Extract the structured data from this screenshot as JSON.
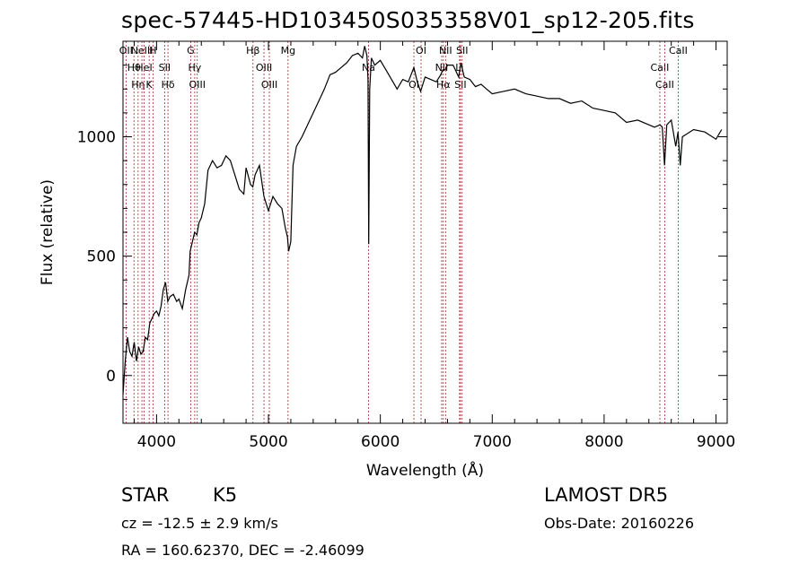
{
  "title": "spec-57445-HD103450S035358V01_sp12-205.fits",
  "footer": {
    "obj_class": "STAR",
    "obj_subclass": "K5",
    "cz": "cz = -12.5 ± 2.9 km/s",
    "radec": "RA = 160.62370, DEC =  -2.46099",
    "survey": "LAMOST DR5",
    "obs_date": "Obs-Date: 20160226"
  },
  "colors": {
    "spectrum": "#000000",
    "lines": "#b22222",
    "axes": "#000000"
  },
  "chart_data": {
    "type": "line",
    "title": "spec-57445-HD103450S035358V01_sp12-205.fits",
    "xlabel": "Wavelength (Å)",
    "ylabel": "Flux (relative)",
    "xlim": [
      3700,
      9100
    ],
    "ylim": [
      -200,
      1400
    ],
    "xticks": [
      4000,
      5000,
      6000,
      7000,
      8000,
      9000
    ],
    "yticks": [
      0,
      500,
      1000
    ],
    "grid": false,
    "series": [
      {
        "x": [
          3700,
          3720,
          3740,
          3760,
          3780,
          3800,
          3820,
          3840,
          3860,
          3880,
          3900,
          3920,
          3940,
          3960,
          3980,
          4000,
          4020,
          4040,
          4060,
          4080,
          4100,
          4120,
          4150,
          4180,
          4200,
          4230,
          4260,
          4290,
          4300,
          4320,
          4340,
          4360,
          4380,
          4400,
          4430,
          4460,
          4500,
          4540,
          4580,
          4620,
          4660,
          4700,
          4740,
          4780,
          4800,
          4840,
          4860,
          4880,
          4920,
          4960,
          5000,
          5040,
          5080,
          5120,
          5150,
          5170,
          5180,
          5200,
          5220,
          5250,
          5300,
          5350,
          5400,
          5450,
          5500,
          5550,
          5600,
          5650,
          5700,
          5750,
          5800,
          5840,
          5860,
          5880,
          5890,
          5896,
          5905,
          5920,
          5950,
          6000,
          6050,
          6100,
          6150,
          6200,
          6250,
          6300,
          6330,
          6360,
          6400,
          6450,
          6500,
          6540,
          6560,
          6580,
          6600,
          6650,
          6700,
          6720,
          6750,
          6800,
          6850,
          6900,
          6950,
          7000,
          7100,
          7200,
          7300,
          7400,
          7500,
          7600,
          7700,
          7800,
          7900,
          8000,
          8100,
          8200,
          8300,
          8400,
          8450,
          8500,
          8520,
          8540,
          8560,
          8600,
          8640,
          8660,
          8680,
          8700,
          8800,
          8900,
          9000,
          9050
        ],
        "y": [
          -80,
          60,
          160,
          100,
          80,
          140,
          60,
          120,
          90,
          100,
          160,
          150,
          220,
          240,
          260,
          270,
          250,
          290,
          360,
          390,
          310,
          330,
          340,
          310,
          320,
          280,
          360,
          420,
          520,
          560,
          600,
          590,
          640,
          660,
          720,
          860,
          900,
          870,
          880,
          920,
          900,
          840,
          780,
          760,
          870,
          800,
          790,
          840,
          880,
          750,
          690,
          750,
          720,
          700,
          620,
          580,
          520,
          560,
          880,
          960,
          1000,
          1050,
          1100,
          1150,
          1200,
          1260,
          1270,
          1290,
          1310,
          1340,
          1350,
          1330,
          1380,
          1340,
          1240,
          550,
          1200,
          1330,
          1300,
          1320,
          1280,
          1240,
          1200,
          1240,
          1230,
          1290,
          1230,
          1190,
          1250,
          1240,
          1230,
          1260,
          1280,
          1280,
          1300,
          1300,
          1250,
          1310,
          1250,
          1240,
          1210,
          1220,
          1200,
          1180,
          1190,
          1200,
          1180,
          1170,
          1160,
          1160,
          1140,
          1150,
          1120,
          1110,
          1100,
          1060,
          1070,
          1050,
          1040,
          1050,
          1040,
          880,
          1050,
          1070,
          960,
          1020,
          880,
          1000,
          1030,
          1020,
          990,
          1030
        ]
      }
    ],
    "line_markers": [
      {
        "wave": 3727,
        "label": "OII"
      },
      {
        "wave": 3798,
        "label": "Hθ"
      },
      {
        "wave": 3835,
        "label": "Hη"
      },
      {
        "wave": 3869,
        "label": "NeIII"
      },
      {
        "wave": 3889,
        "label": "HeI"
      },
      {
        "wave": 3934,
        "label": "K"
      },
      {
        "wave": 3968,
        "label": "H"
      },
      {
        "wave": 4072,
        "label": "SII"
      },
      {
        "wave": 4102,
        "label": "Hδ"
      },
      {
        "wave": 4305,
        "label": "G"
      },
      {
        "wave": 4341,
        "label": "Hγ"
      },
      {
        "wave": 4364,
        "label": "OIII"
      },
      {
        "wave": 4862,
        "label": "Hβ"
      },
      {
        "wave": 4960,
        "label": "OIII"
      },
      {
        "wave": 5008,
        "label": "OIII"
      },
      {
        "wave": 5175,
        "label": "Mg"
      },
      {
        "wave": 5894,
        "label": "Na"
      },
      {
        "wave": 6300,
        "label": "OI"
      },
      {
        "wave": 6364,
        "label": "OI"
      },
      {
        "wave": 6548,
        "label": "NII"
      },
      {
        "wave": 6563,
        "label": "Hα"
      },
      {
        "wave": 6583,
        "label": "NII"
      },
      {
        "wave": 6708,
        "label": "Li"
      },
      {
        "wave": 6716,
        "label": "SII"
      },
      {
        "wave": 6731,
        "label": "SII"
      },
      {
        "wave": 8498,
        "label": "CaII"
      },
      {
        "wave": 8542,
        "label": "CaII"
      },
      {
        "wave": 8662,
        "label": "CaII"
      }
    ]
  }
}
